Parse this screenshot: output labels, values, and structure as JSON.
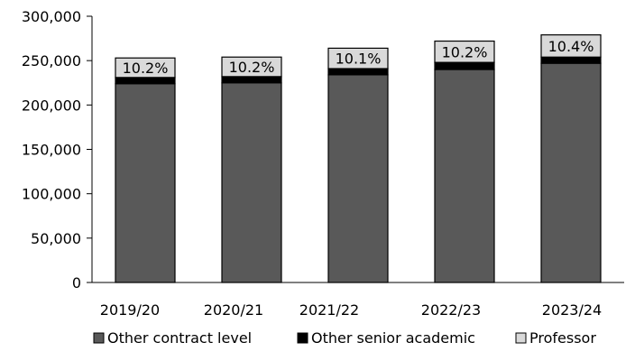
{
  "chart_data": {
    "type": "bar",
    "stacked": true,
    "categories": [
      "2019/20",
      "2020/21",
      "2021/22",
      "2022/23",
      "2023/24"
    ],
    "series": [
      {
        "name": "Other contract level",
        "color": "#595959",
        "values": [
          224000,
          225000,
          234000,
          240000,
          247000
        ]
      },
      {
        "name": "Other senior  academic",
        "color": "#000000",
        "values": [
          7000,
          7000,
          7000,
          8000,
          7000
        ]
      },
      {
        "name": "Professor",
        "color": "#d9d9d9",
        "values": [
          22000,
          22000,
          23000,
          24000,
          25000
        ]
      }
    ],
    "data_labels": [
      "10.2%",
      "10.2%",
      "10.1%",
      "10.2%",
      "10.4%"
    ],
    "ylim": [
      0,
      300000
    ],
    "yticks": [
      0,
      50000,
      100000,
      150000,
      200000,
      250000,
      300000
    ],
    "ytick_labels": [
      "0",
      "50,000",
      "100,000",
      "150,000",
      "200,000",
      "250,000",
      "300,000"
    ],
    "grid": false,
    "legend_position": "bottom"
  }
}
